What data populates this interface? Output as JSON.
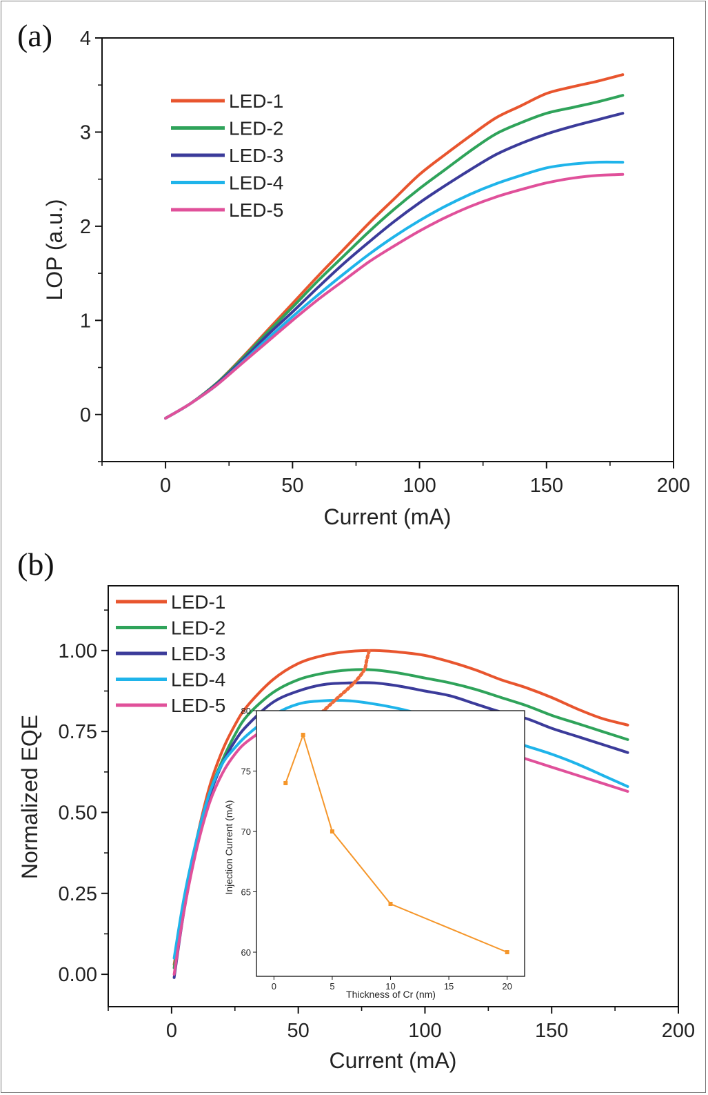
{
  "colors": {
    "LED-1": "#e8552e",
    "LED-2": "#2fa35a",
    "LED-3": "#3b3b9a",
    "LED-4": "#1fb4ea",
    "LED-5": "#e0509a",
    "inset": "#f5962a",
    "guide": "#ee6a3a"
  },
  "chart_data": [
    {
      "panel": "(a)",
      "type": "line",
      "xlabel": "Current (mA)",
      "ylabel": "LOP (a.u.)",
      "xlim": [
        -25,
        200
      ],
      "ylim": [
        -0.5,
        4
      ],
      "xticks": [
        "0",
        "50",
        "100",
        "150",
        "200"
      ],
      "yticks": [
        "0",
        "1",
        "2",
        "3",
        "4"
      ],
      "legend": "upper-left",
      "grid": false,
      "x": [
        0,
        10,
        20,
        30,
        40,
        50,
        60,
        70,
        80,
        90,
        100,
        110,
        120,
        130,
        140,
        150,
        160,
        170,
        180
      ],
      "series": [
        {
          "name": "LED-1",
          "values": [
            -0.04,
            0.12,
            0.33,
            0.6,
            0.89,
            1.18,
            1.47,
            1.75,
            2.03,
            2.29,
            2.55,
            2.76,
            2.96,
            3.15,
            3.28,
            3.41,
            3.48,
            3.54,
            3.61
          ]
        },
        {
          "name": "LED-2",
          "values": [
            -0.04,
            0.12,
            0.33,
            0.59,
            0.87,
            1.14,
            1.42,
            1.68,
            1.94,
            2.18,
            2.4,
            2.6,
            2.8,
            2.98,
            3.1,
            3.2,
            3.26,
            3.32,
            3.39
          ]
        },
        {
          "name": "LED-3",
          "values": [
            -0.04,
            0.12,
            0.32,
            0.57,
            0.84,
            1.09,
            1.35,
            1.6,
            1.83,
            2.05,
            2.25,
            2.43,
            2.6,
            2.76,
            2.88,
            2.98,
            3.06,
            3.13,
            3.2
          ]
        },
        {
          "name": "LED-4",
          "values": [
            -0.04,
            0.12,
            0.31,
            0.55,
            0.8,
            1.04,
            1.27,
            1.49,
            1.7,
            1.89,
            2.06,
            2.21,
            2.34,
            2.45,
            2.54,
            2.62,
            2.66,
            2.68,
            2.68
          ]
        },
        {
          "name": "LED-5",
          "values": [
            -0.04,
            0.12,
            0.31,
            0.54,
            0.77,
            1.0,
            1.22,
            1.42,
            1.62,
            1.79,
            1.95,
            2.09,
            2.21,
            2.31,
            2.39,
            2.46,
            2.51,
            2.54,
            2.55
          ]
        }
      ]
    },
    {
      "panel": "(b)",
      "type": "line",
      "xlabel": "Current (mA)",
      "ylabel": "Normalized EQE",
      "xlim": [
        -25,
        200
      ],
      "ylim": [
        -0.1,
        1.2
      ],
      "xticks": [
        "0",
        "50",
        "100",
        "150",
        "200"
      ],
      "yticks": [
        "0.00",
        "0.25",
        "0.50",
        "0.75",
        "1.00"
      ],
      "legend": "upper-left",
      "grid": false,
      "x": [
        1,
        5,
        10,
        15,
        20,
        25,
        30,
        40,
        50,
        60,
        70,
        80,
        90,
        100,
        110,
        120,
        130,
        140,
        150,
        160,
        170,
        180
      ],
      "series": [
        {
          "name": "LED-1",
          "values": [
            0.03,
            0.22,
            0.42,
            0.58,
            0.69,
            0.77,
            0.83,
            0.91,
            0.96,
            0.985,
            0.997,
            1.0,
            0.995,
            0.985,
            0.965,
            0.94,
            0.91,
            0.885,
            0.855,
            0.82,
            0.79,
            0.77
          ]
        },
        {
          "name": "LED-2",
          "values": [
            0.02,
            0.22,
            0.41,
            0.56,
            0.66,
            0.74,
            0.8,
            0.87,
            0.91,
            0.93,
            0.94,
            0.94,
            0.93,
            0.915,
            0.9,
            0.88,
            0.855,
            0.83,
            0.8,
            0.775,
            0.75,
            0.725
          ]
        },
        {
          "name": "LED-3",
          "values": [
            -0.01,
            0.2,
            0.4,
            0.55,
            0.65,
            0.72,
            0.77,
            0.84,
            0.875,
            0.895,
            0.9,
            0.9,
            0.89,
            0.875,
            0.86,
            0.835,
            0.81,
            0.79,
            0.76,
            0.735,
            0.71,
            0.685
          ]
        },
        {
          "name": "LED-4",
          "values": [
            0.05,
            0.24,
            0.42,
            0.56,
            0.65,
            0.7,
            0.74,
            0.8,
            0.835,
            0.845,
            0.845,
            0.835,
            0.82,
            0.8,
            0.78,
            0.755,
            0.73,
            0.705,
            0.68,
            0.65,
            0.615,
            0.58
          ]
        },
        {
          "name": "LED-5",
          "values": [
            0.0,
            0.2,
            0.39,
            0.53,
            0.62,
            0.68,
            0.72,
            0.77,
            0.79,
            0.8,
            0.795,
            0.785,
            0.77,
            0.75,
            0.73,
            0.71,
            0.69,
            0.665,
            0.64,
            0.615,
            0.59,
            0.565
          ]
        }
      ],
      "peak_guide": {
        "x": [
          58,
          65,
          72,
          76,
          77,
          78
        ],
        "y": [
          0.8,
          0.85,
          0.9,
          0.94,
          0.97,
          1.0
        ]
      }
    },
    {
      "panel": "inset",
      "type": "line",
      "xlabel": "Thickness of Cr (nm)",
      "ylabel": "Injection Current (mA)",
      "xlim": [
        -1.5,
        21.5
      ],
      "ylim": [
        58,
        80
      ],
      "xticks": [
        "0",
        "5",
        "10",
        "15",
        "20"
      ],
      "yticks": [
        "60",
        "65",
        "70",
        "75",
        "80"
      ],
      "grid": false,
      "series": [
        {
          "x": [
            1,
            2.5,
            5,
            10,
            20
          ],
          "values": [
            74,
            78,
            70,
            64,
            60
          ]
        }
      ]
    }
  ]
}
